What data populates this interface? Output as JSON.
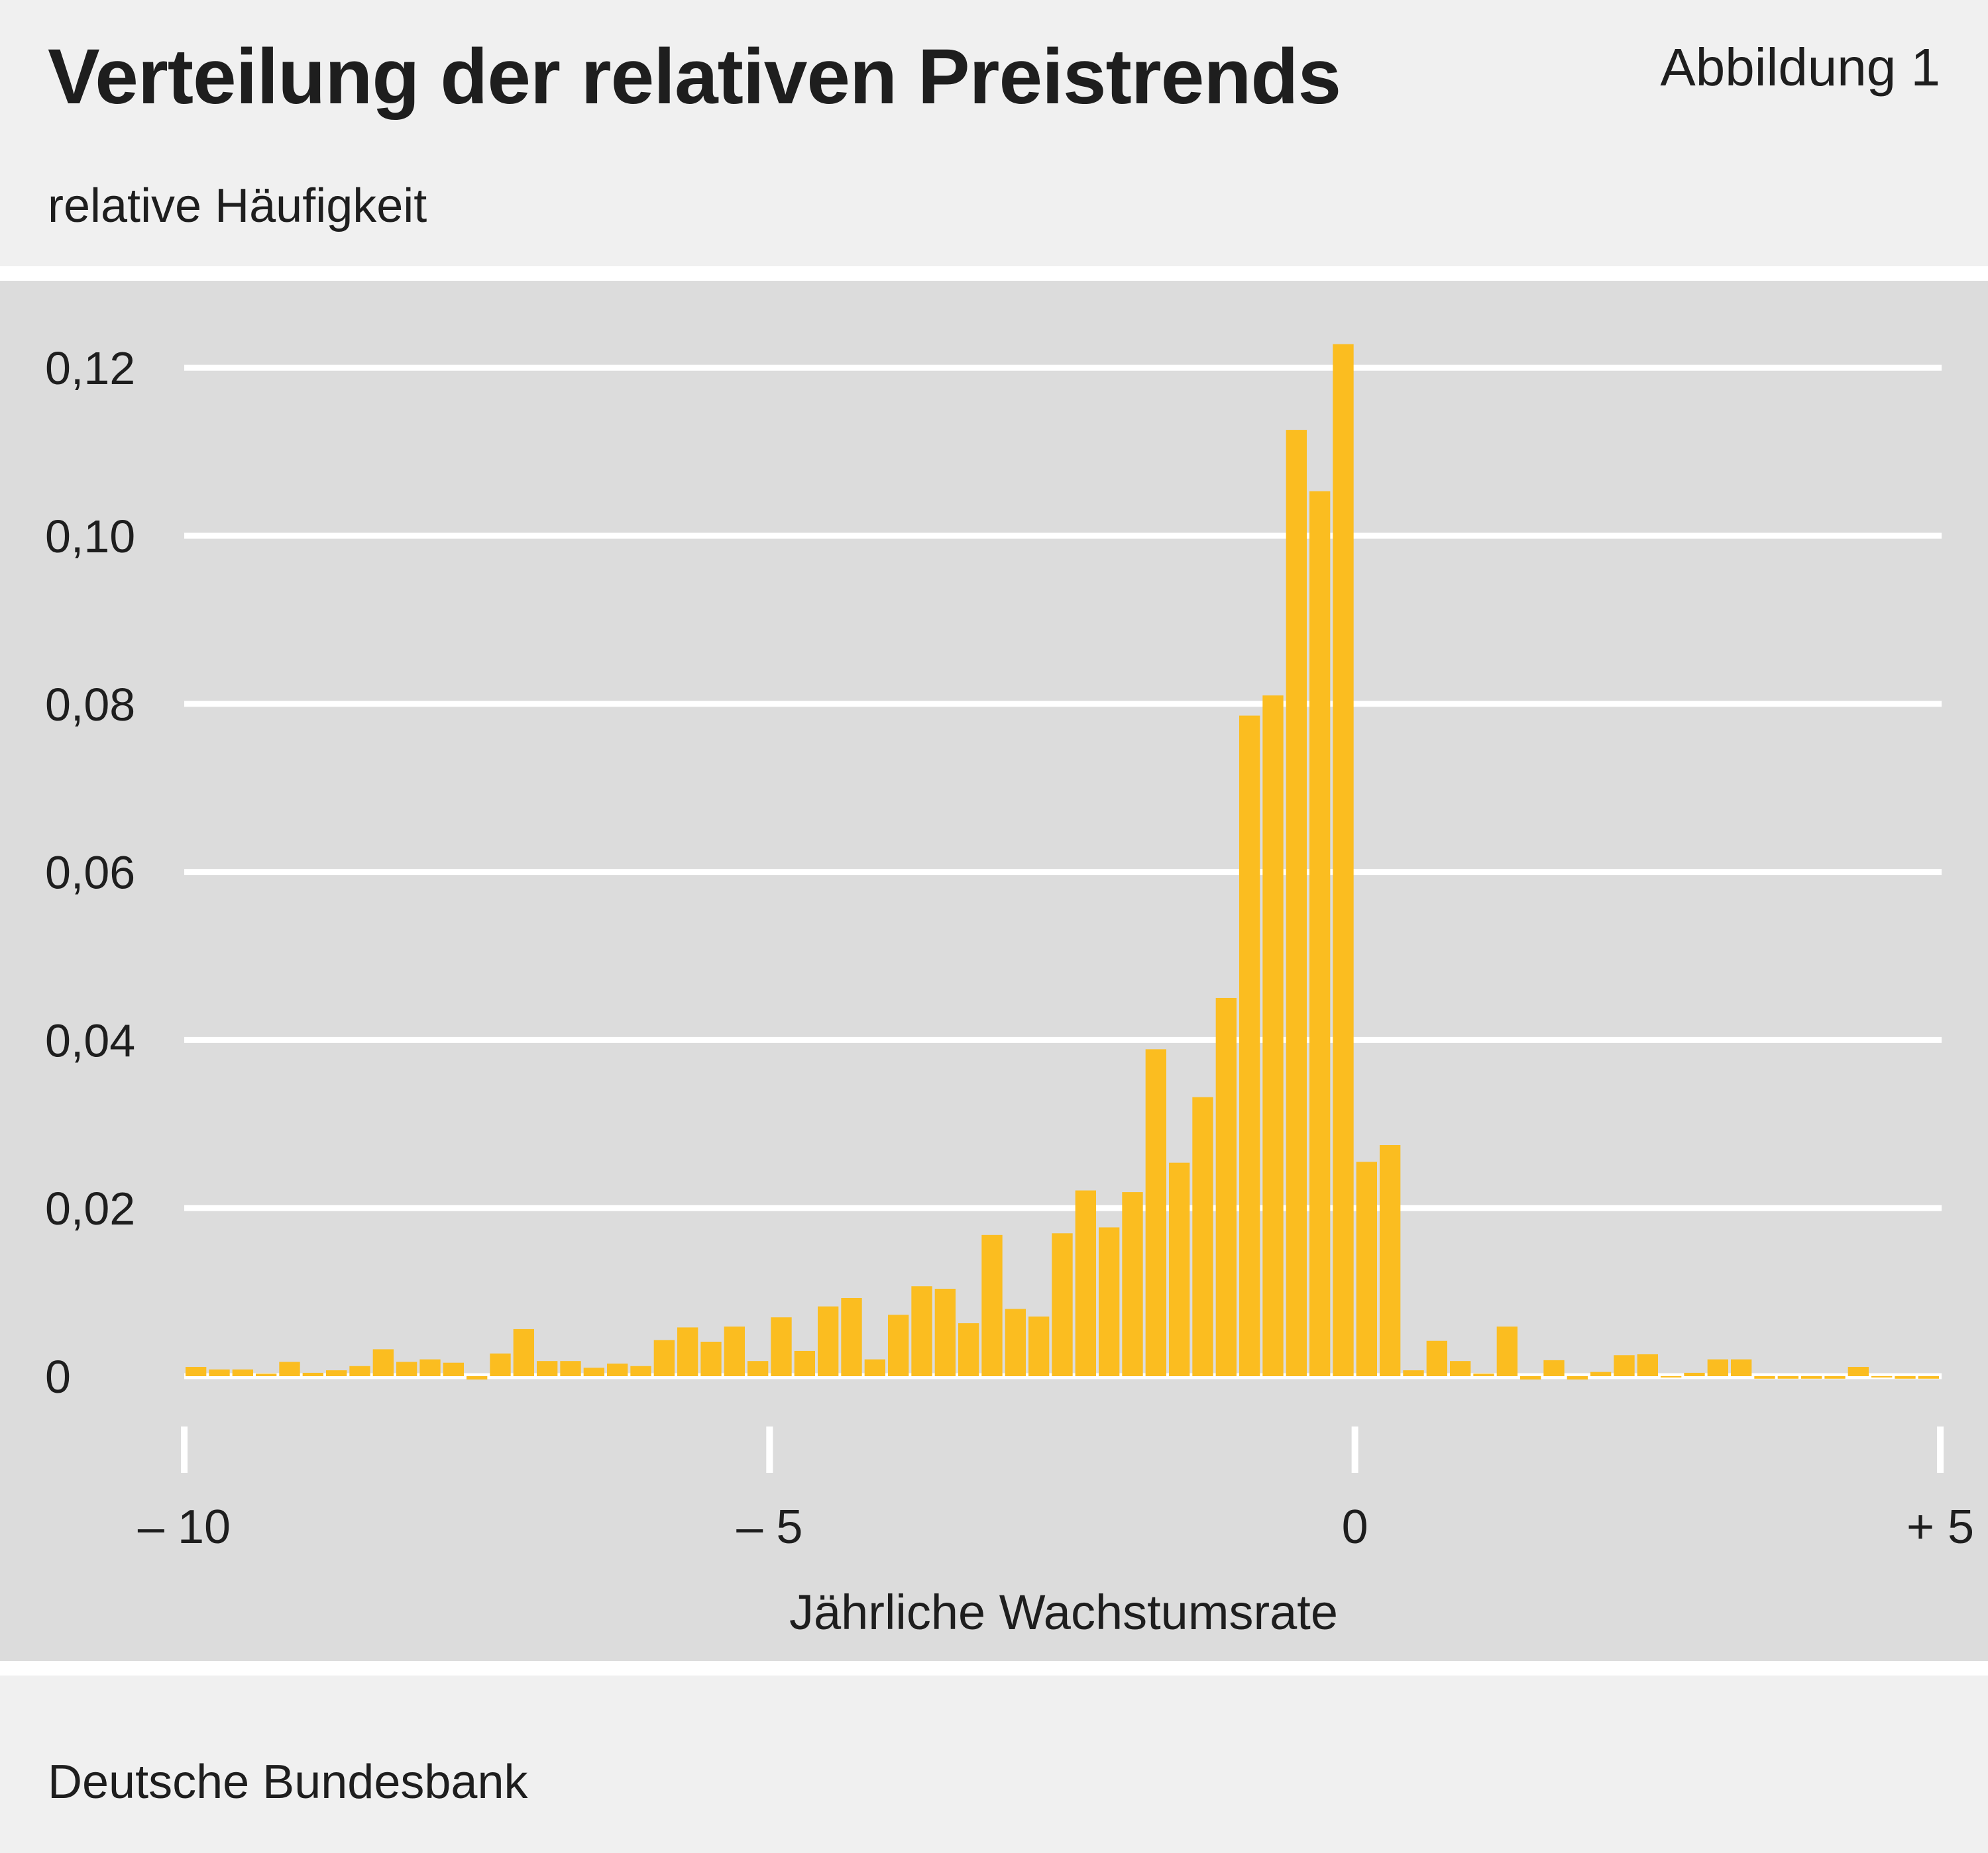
{
  "header": {
    "title": "Verteilung der relativen Preistrends",
    "figure_label": "Abbildung 1",
    "y_unit": "relative Häufigkeit"
  },
  "footer": {
    "source": "Deutsche Bundesbank"
  },
  "colors": {
    "bar": "#fbbd20",
    "plot_background": "#dcdcdc",
    "page_background": "#f0f0f0",
    "gridline": "#ffffff"
  },
  "chart_data": {
    "type": "bar",
    "title": "Verteilung der relativen Preistrends",
    "ylabel": "relative Häufigkeit",
    "xlabel": "Jährliche Wachstumsrate",
    "xlim": [
      -10,
      5
    ],
    "ylim": [
      0,
      0.12
    ],
    "grid": true,
    "y_ticks": [
      {
        "value": 0,
        "label": "0"
      },
      {
        "value": 0.02,
        "label": "0,02"
      },
      {
        "value": 0.04,
        "label": "0,04"
      },
      {
        "value": 0.06,
        "label": "0,06"
      },
      {
        "value": 0.08,
        "label": "0,08"
      },
      {
        "value": 0.1,
        "label": "0,10"
      },
      {
        "value": 0.12,
        "label": "0,12"
      }
    ],
    "x_ticks": [
      {
        "value": -10,
        "label": "– 10"
      },
      {
        "value": -5,
        "label": "– 5"
      },
      {
        "value": 0,
        "label": "0"
      },
      {
        "value": 5,
        "label": "+ 5"
      }
    ],
    "bin_width": 0.2,
    "series": [
      {
        "x": [
          -9.9,
          -9.7,
          -9.5,
          -9.3,
          -9.1,
          -8.9,
          -8.7,
          -8.5,
          -8.3,
          -8.1,
          -7.9,
          -7.7,
          -7.5,
          -7.3,
          -7.1,
          -6.9,
          -6.7,
          -6.5,
          -6.3,
          -6.1,
          -5.9,
          -5.7,
          -5.5,
          -5.3,
          -5.1,
          -4.9,
          -4.7,
          -4.5,
          -4.3,
          -4.1,
          -3.9,
          -3.7,
          -3.5,
          -3.3,
          -3.1,
          -2.9,
          -2.7,
          -2.5,
          -2.3,
          -2.1,
          -1.9,
          -1.7,
          -1.5,
          -1.3,
          -1.1,
          -0.9,
          -0.7,
          -0.5,
          -0.3,
          -0.1,
          0.1,
          0.3,
          0.5,
          0.7,
          0.9,
          1.1,
          1.3,
          1.5,
          1.7,
          1.9,
          2.1,
          2.3,
          2.5,
          2.7,
          2.9,
          3.1,
          3.3,
          3.5,
          3.7,
          3.9,
          4.1,
          4.3,
          4.5,
          4.7,
          4.9
        ],
        "values": [
          0.0011,
          0.0008,
          0.0008,
          0.0003,
          0.0017,
          0.0004,
          0.0007,
          0.0012,
          0.0032,
          0.0017,
          0.002,
          0.0016,
          -0.0004,
          0.0027,
          0.0056,
          0.0018,
          0.0018,
          0.001,
          0.0015,
          0.0012,
          0.0043,
          0.0058,
          0.0041,
          0.0059,
          0.0018,
          0.007,
          0.003,
          0.0083,
          0.0093,
          0.002,
          0.0073,
          0.0107,
          0.0104,
          0.0063,
          0.0168,
          0.008,
          0.0071,
          0.017,
          0.0221,
          0.0177,
          0.0219,
          0.0389,
          0.0254,
          0.0332,
          0.045,
          0.0786,
          0.081,
          0.1126,
          0.1053,
          0.1228,
          0.0255,
          0.0275,
          0.0007,
          0.0042,
          0.0018,
          0.0003,
          0.0059,
          -0.0004,
          0.0019,
          -0.0004,
          0.0005,
          0.0025,
          0.0026,
          0.0,
          0.0004,
          0.002,
          0.002,
          -0.0003,
          -0.0003,
          -0.0003,
          -0.0003,
          0.0011,
          0.0,
          -0.0003,
          -0.0003
        ]
      }
    ]
  }
}
